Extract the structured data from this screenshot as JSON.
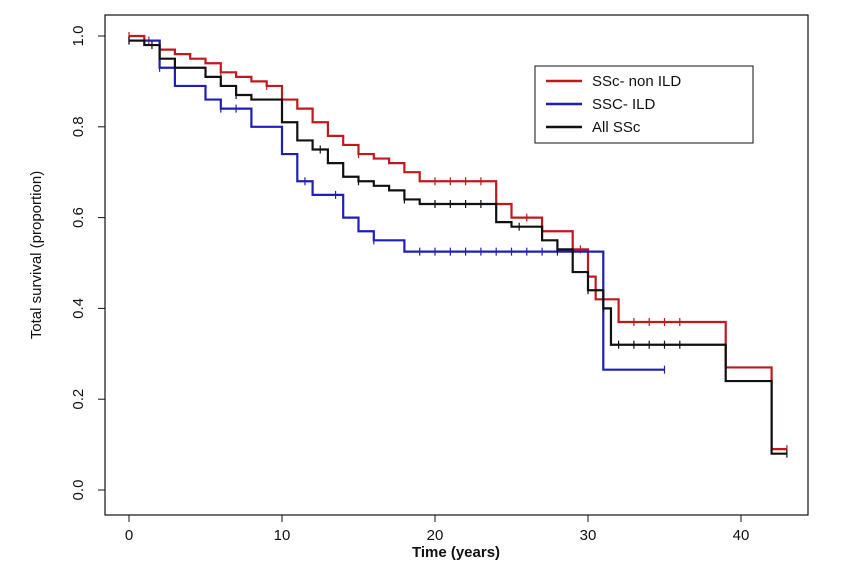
{
  "chart_data": {
    "type": "line",
    "title": "",
    "xlabel": "Time (years)",
    "ylabel": "Total survival (proportion)",
    "xlim": [
      0,
      43
    ],
    "ylim": [
      0.0,
      1.0
    ],
    "x_ticks": [
      0,
      10,
      20,
      30,
      40
    ],
    "y_ticks": [
      0.0,
      0.2,
      0.4,
      0.6,
      0.8,
      1.0
    ],
    "x_tick_labels": [
      "0",
      "10",
      "20",
      "30",
      "40"
    ],
    "y_tick_labels": [
      "0.0",
      "0.2",
      "0.4",
      "0.6",
      "0.8",
      "1.0"
    ],
    "legend_position": "top-right",
    "series": [
      {
        "name": "SSc- non ILD",
        "color": "#c0181c",
        "steps": [
          [
            0,
            1.0
          ],
          [
            1,
            0.99
          ],
          [
            2,
            0.97
          ],
          [
            3,
            0.96
          ],
          [
            4,
            0.95
          ],
          [
            5,
            0.94
          ],
          [
            6,
            0.92
          ],
          [
            7,
            0.91
          ],
          [
            8,
            0.9
          ],
          [
            9,
            0.89
          ],
          [
            10,
            0.86
          ],
          [
            11,
            0.84
          ],
          [
            12,
            0.81
          ],
          [
            13,
            0.78
          ],
          [
            14,
            0.76
          ],
          [
            15,
            0.74
          ],
          [
            16,
            0.73
          ],
          [
            17,
            0.72
          ],
          [
            18,
            0.7
          ],
          [
            19,
            0.68
          ],
          [
            24,
            0.63
          ],
          [
            25,
            0.6
          ],
          [
            27,
            0.57
          ],
          [
            29,
            0.53
          ],
          [
            30,
            0.47
          ],
          [
            30.5,
            0.42
          ],
          [
            32,
            0.37
          ],
          [
            39,
            0.27
          ],
          [
            42,
            0.09
          ],
          [
            43,
            0.09
          ]
        ],
        "censor_times": [
          0,
          1.3,
          6,
          9,
          15,
          20,
          21,
          22,
          23,
          26,
          29.5,
          33,
          34,
          35,
          36,
          43
        ]
      },
      {
        "name": "SSC- ILD",
        "color": "#1f1fb5",
        "steps": [
          [
            0,
            0.99
          ],
          [
            2,
            0.93
          ],
          [
            3,
            0.89
          ],
          [
            5,
            0.86
          ],
          [
            6,
            0.84
          ],
          [
            8,
            0.8
          ],
          [
            10,
            0.74
          ],
          [
            11,
            0.68
          ],
          [
            12,
            0.65
          ],
          [
            14,
            0.6
          ],
          [
            15,
            0.57
          ],
          [
            16,
            0.55
          ],
          [
            18,
            0.525
          ],
          [
            31,
            0.265
          ],
          [
            35,
            0.265
          ]
        ],
        "censor_times": [
          0,
          2,
          6,
          7,
          11.5,
          13.5,
          16,
          19,
          20,
          21,
          22,
          23,
          24,
          25,
          26,
          27,
          28,
          35
        ]
      },
      {
        "name": "All SSc",
        "color": "#111111",
        "steps": [
          [
            0,
            0.99
          ],
          [
            1,
            0.98
          ],
          [
            2,
            0.95
          ],
          [
            3,
            0.93
          ],
          [
            5,
            0.91
          ],
          [
            6,
            0.89
          ],
          [
            7,
            0.87
          ],
          [
            8,
            0.86
          ],
          [
            10,
            0.81
          ],
          [
            11,
            0.77
          ],
          [
            12,
            0.75
          ],
          [
            13,
            0.72
          ],
          [
            14,
            0.69
          ],
          [
            15,
            0.68
          ],
          [
            16,
            0.67
          ],
          [
            17,
            0.66
          ],
          [
            18,
            0.64
          ],
          [
            19,
            0.63
          ],
          [
            24,
            0.59
          ],
          [
            25,
            0.58
          ],
          [
            27,
            0.55
          ],
          [
            28,
            0.53
          ],
          [
            29,
            0.48
          ],
          [
            30,
            0.44
          ],
          [
            31,
            0.4
          ],
          [
            31.5,
            0.32
          ],
          [
            39,
            0.24
          ],
          [
            42,
            0.08
          ],
          [
            43,
            0.08
          ]
        ],
        "censor_times": [
          0,
          1.5,
          7,
          12.5,
          15,
          18,
          20,
          21,
          22,
          23,
          25.5,
          28,
          30,
          31,
          32,
          33,
          34,
          35,
          36,
          43
        ]
      }
    ]
  }
}
